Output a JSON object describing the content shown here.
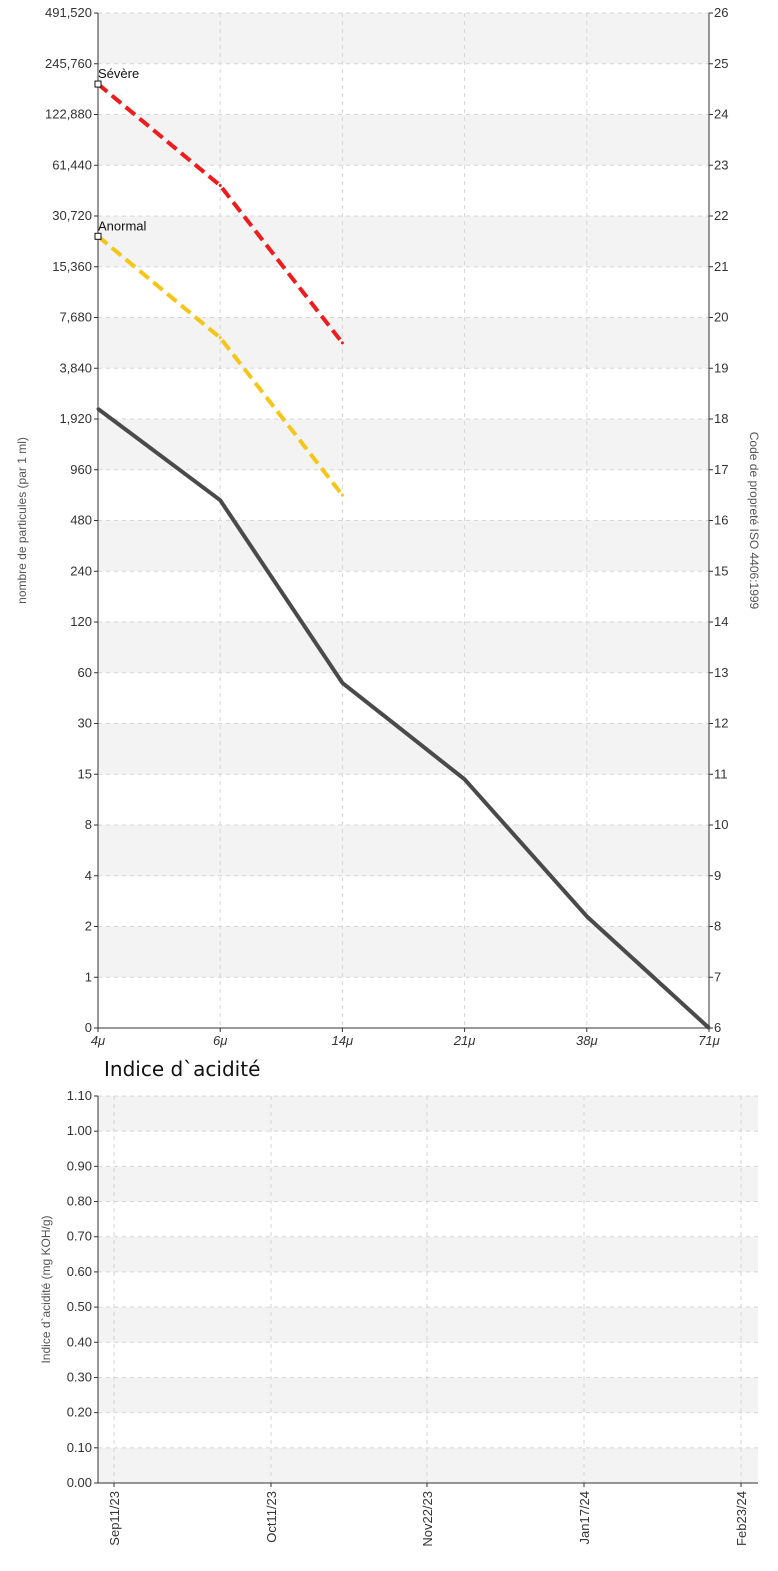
{
  "chart_data": [
    {
      "type": "line",
      "title": "",
      "x_ticks": [
        "4μ",
        "6μ",
        "14μ",
        "21μ",
        "38μ",
        "71μ"
      ],
      "ylabel_left": "nombre de particules (par 1 ml)",
      "ylabel_right": "Code de propreté ISO 4406:1999",
      "y_ticks_left": [
        "0",
        "1",
        "2",
        "4",
        "8",
        "15",
        "30",
        "60",
        "120",
        "240",
        "480",
        "960",
        "1,920",
        "3,840",
        "7,680",
        "15,360",
        "30,720",
        "61,440",
        "122,880",
        "245,760",
        "491,520"
      ],
      "y_ticks_right": [
        "6",
        "7",
        "8",
        "9",
        "10",
        "11",
        "12",
        "13",
        "14",
        "15",
        "16",
        "17",
        "18",
        "19",
        "20",
        "21",
        "22",
        "23",
        "24",
        "25",
        "26"
      ],
      "grid": true,
      "series": [
        {
          "name": "Sévère",
          "color": "#ee1c1c",
          "style": "dashed",
          "values": [
            24.6,
            22.6,
            19.5
          ]
        },
        {
          "name": "Anormal",
          "color": "#f5c518",
          "style": "dashed",
          "values": [
            21.6,
            19.6,
            16.5
          ]
        },
        {
          "name": "",
          "color": "#4a4a4a",
          "style": "solid",
          "values": [
            18.2,
            16.4,
            12.8,
            10.9,
            8.2,
            6.0
          ]
        }
      ]
    },
    {
      "type": "line",
      "title": "Indice d`acidité",
      "ylabel": "Indice d`acidité (mg KOH/g)",
      "y_ticks": [
        "0.00",
        "0.10",
        "0.20",
        "0.30",
        "0.40",
        "0.50",
        "0.60",
        "0.70",
        "0.80",
        "0.90",
        "1.00",
        "1.10"
      ],
      "ylim": [
        0,
        1.1
      ],
      "x_ticks": [
        "Sep11/23",
        "Oct11/23",
        "Nov22/23",
        "Jan17/24",
        "Feb23/24"
      ],
      "grid": true,
      "series": []
    }
  ]
}
